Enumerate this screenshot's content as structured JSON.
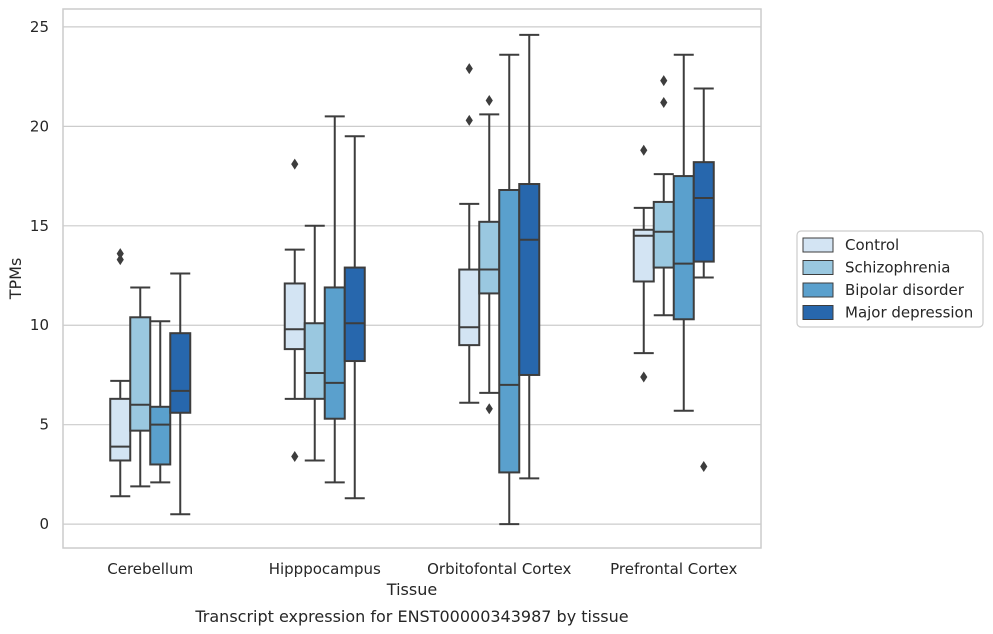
{
  "caption": "Transcript expression for ENST00000343987 by tissue",
  "chart_data": {
    "type": "boxplot",
    "title": "",
    "xlabel": "Tissue",
    "ylabel": "TPMs",
    "ylim": [
      -1.2,
      25.9
    ],
    "yticks": [
      0,
      5,
      10,
      15,
      20,
      25
    ],
    "grid": "horizontal",
    "legend_position": "right",
    "categories": [
      "Cerebellum",
      "Hipppocampus",
      "Orbitofontal Cortex",
      "Prefrontal Cortex"
    ],
    "series": [
      {
        "name": "Control",
        "color": "#d3e4f3",
        "boxes": [
          {
            "min": 1.4,
            "q1": 3.2,
            "median": 3.9,
            "q3": 6.3,
            "max": 7.2,
            "outliers": [
              13.3,
              13.6
            ]
          },
          {
            "min": 6.3,
            "q1": 8.8,
            "median": 9.8,
            "q3": 12.1,
            "max": 13.8,
            "outliers": [
              3.4,
              18.1
            ]
          },
          {
            "min": 6.1,
            "q1": 9.0,
            "median": 9.9,
            "q3": 12.8,
            "max": 16.1,
            "outliers": [
              20.3,
              22.9
            ]
          },
          {
            "min": 8.6,
            "q1": 12.2,
            "median": 14.5,
            "q3": 14.8,
            "max": 15.9,
            "outliers": [
              7.4,
              18.8
            ]
          }
        ]
      },
      {
        "name": "Schizophrenia",
        "color": "#9ac8e0",
        "boxes": [
          {
            "min": 1.9,
            "q1": 4.7,
            "median": 6.0,
            "q3": 10.4,
            "max": 11.9,
            "outliers": []
          },
          {
            "min": 3.2,
            "q1": 6.3,
            "median": 7.6,
            "q3": 10.1,
            "max": 15.0,
            "outliers": []
          },
          {
            "min": 6.6,
            "q1": 11.6,
            "median": 12.8,
            "q3": 15.2,
            "max": 20.6,
            "outliers": [
              5.8,
              21.3
            ]
          },
          {
            "min": 10.5,
            "q1": 12.9,
            "median": 14.7,
            "q3": 16.2,
            "max": 17.6,
            "outliers": [
              21.2,
              22.3
            ]
          }
        ]
      },
      {
        "name": "Bipolar disorder",
        "color": "#5aa0cd",
        "boxes": [
          {
            "min": 2.1,
            "q1": 3.0,
            "median": 5.0,
            "q3": 5.9,
            "max": 10.2,
            "outliers": []
          },
          {
            "min": 2.1,
            "q1": 5.3,
            "median": 7.1,
            "q3": 11.9,
            "max": 20.5,
            "outliers": []
          },
          {
            "min": 0.0,
            "q1": 2.6,
            "median": 7.0,
            "q3": 16.8,
            "max": 23.6,
            "outliers": []
          },
          {
            "min": 5.7,
            "q1": 10.3,
            "median": 13.1,
            "q3": 17.5,
            "max": 23.6,
            "outliers": []
          }
        ]
      },
      {
        "name": "Major depression",
        "color": "#2767ad",
        "boxes": [
          {
            "min": 0.5,
            "q1": 5.6,
            "median": 6.7,
            "q3": 9.6,
            "max": 12.6,
            "outliers": []
          },
          {
            "min": 1.3,
            "q1": 8.2,
            "median": 10.1,
            "q3": 12.9,
            "max": 19.5,
            "outliers": []
          },
          {
            "min": 2.3,
            "q1": 7.5,
            "median": 14.3,
            "q3": 17.1,
            "max": 24.6,
            "outliers": []
          },
          {
            "min": 12.4,
            "q1": 13.2,
            "median": 16.4,
            "q3": 18.2,
            "max": 21.9,
            "outliers": [
              2.9
            ]
          }
        ]
      }
    ]
  }
}
